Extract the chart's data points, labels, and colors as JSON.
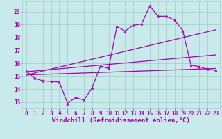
{
  "xlabel": "Windchill (Refroidissement éolien,°C)",
  "background_color": "#c8eaea",
  "grid_color": "#a8d0d0",
  "line_color": "#aa00aa",
  "xlim": [
    -0.5,
    23.5
  ],
  "ylim": [
    12.5,
    20.8
  ],
  "xticks": [
    0,
    1,
    2,
    3,
    4,
    5,
    6,
    7,
    8,
    9,
    10,
    11,
    12,
    13,
    14,
    15,
    16,
    17,
    18,
    19,
    20,
    21,
    22,
    23
  ],
  "yticks": [
    13,
    14,
    15,
    16,
    17,
    18,
    19,
    20
  ],
  "line1_x": [
    0,
    1,
    2,
    3,
    4,
    5,
    6,
    7,
    8,
    9,
    10,
    11,
    12,
    13,
    14,
    15,
    16,
    17,
    18,
    19,
    20,
    21,
    22,
    23
  ],
  "line1_y": [
    15.4,
    14.85,
    14.65,
    14.6,
    14.55,
    12.9,
    13.35,
    13.15,
    14.1,
    15.8,
    15.6,
    18.85,
    18.5,
    18.95,
    19.05,
    20.45,
    19.65,
    19.65,
    19.35,
    18.55,
    15.85,
    15.75,
    15.55,
    15.45
  ],
  "line2_x": [
    0,
    23
  ],
  "line2_y": [
    15.1,
    15.6
  ],
  "line3_x": [
    0,
    23
  ],
  "line3_y": [
    15.1,
    18.6
  ],
  "line4_x": [
    0,
    23
  ],
  "line4_y": [
    15.35,
    16.65
  ],
  "marker": "^",
  "marker_size": 2.5,
  "linewidth": 0.9,
  "tick_fontsize": 5.5,
  "xlabel_fontsize": 6.5
}
